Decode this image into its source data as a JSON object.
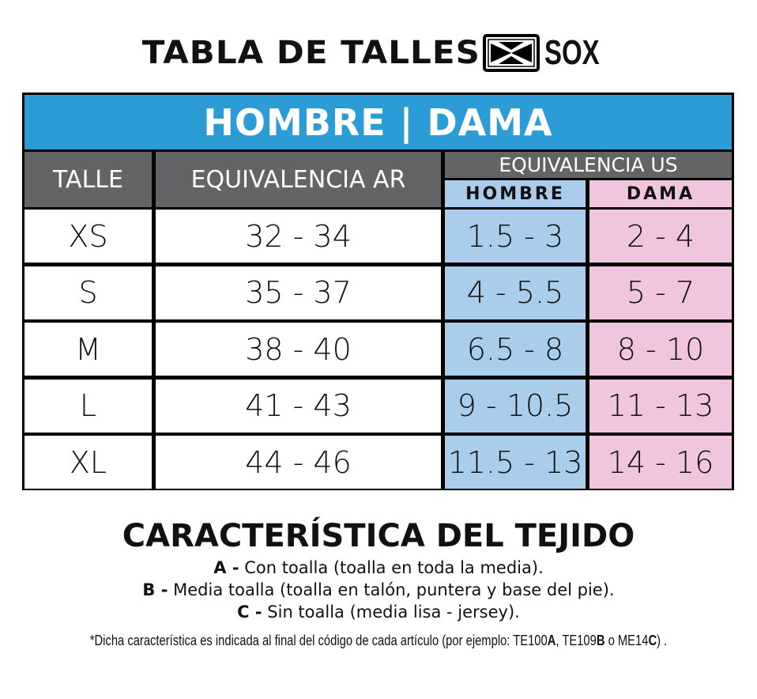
{
  "header": {
    "title": "TABLA DE TALLES",
    "brand": "SOX"
  },
  "table": {
    "banner": "HOMBRE | DAMA",
    "col_talle": "TALLE",
    "col_ar": "EQUIVALENCIA AR",
    "col_us": "EQUIVALENCIA US",
    "col_hombre": "HOMBRE",
    "col_dama": "DAMA",
    "rows": [
      {
        "talle": "XS",
        "ar": "32 - 34",
        "hombre": "1.5 - 3",
        "dama": "2 - 4"
      },
      {
        "talle": "S",
        "ar": "35 - 37",
        "hombre": "4 - 5.5",
        "dama": "5 - 7"
      },
      {
        "talle": "M",
        "ar": "38 - 40",
        "hombre": "6.5 - 8",
        "dama": "8 - 10"
      },
      {
        "talle": "L",
        "ar": "41 - 43",
        "hombre": "9 - 10.5",
        "dama": "11 - 13"
      },
      {
        "talle": "XL",
        "ar": "44 - 46",
        "hombre": "11.5 - 13",
        "dama": "14 - 16"
      }
    ]
  },
  "features": {
    "title": "CARACTERÍSTICA DEL TEJIDO",
    "items": [
      {
        "code": "A -",
        "text": " Con toalla (toalla en toda la media)."
      },
      {
        "code": "B -",
        "text": " Media toalla (toalla en talón, puntera y base del pie)."
      },
      {
        "code": "C -",
        "text": " Sin toalla (media lisa - jersey)."
      }
    ]
  },
  "footnote": {
    "p1": "*Dicha característica es indicada al final del código de cada artículo (por ejemplo: TE100",
    "b1": "A",
    "p2": ", TE109",
    "b2": "B",
    "p3": " o ME14",
    "b3": "C",
    "p4": ") ."
  },
  "colors": {
    "banner": "#2b9cd6",
    "header": "#636466",
    "hombre": "#a9cdea",
    "dama": "#f0c6df"
  }
}
